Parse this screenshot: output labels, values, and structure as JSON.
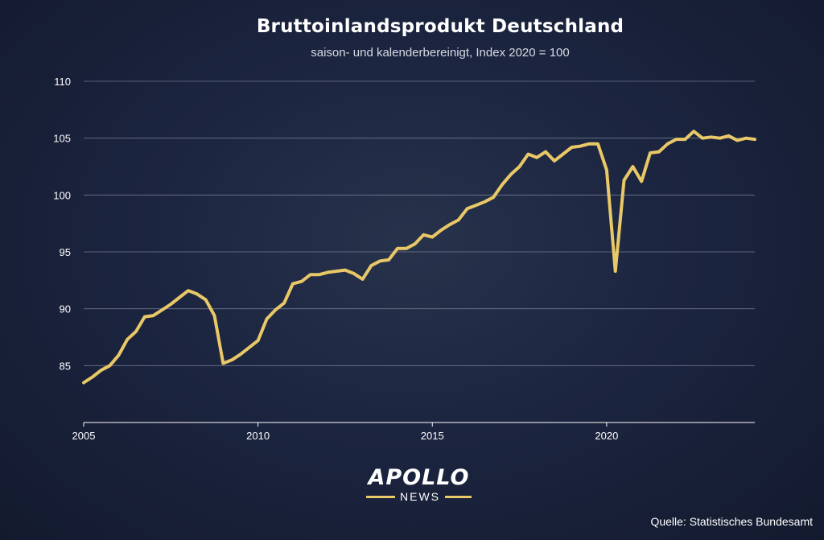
{
  "chart_data": {
    "type": "line",
    "title": "Bruttoinlandsprodukt Deutschland",
    "subtitle": "saison- und kalenderbereinigt, Index 2020 = 100",
    "ylim": [
      80,
      110
    ],
    "yticks": [
      85,
      90,
      95,
      100,
      105,
      110
    ],
    "xlim": [
      2005,
      2024.25
    ],
    "xticks": [
      2005,
      2010,
      2015,
      2020
    ],
    "grid": true,
    "color": "#e8c867",
    "series": [
      {
        "x": [
          2005.0,
          2005.25,
          2005.5,
          2005.75,
          2006.0,
          2006.25,
          2006.5,
          2006.75,
          2007.0,
          2007.25,
          2007.5,
          2007.75,
          2008.0,
          2008.25,
          2008.5,
          2008.75,
          2009.0,
          2009.25,
          2009.5,
          2009.75,
          2010.0,
          2010.25,
          2010.5,
          2010.75,
          2011.0,
          2011.25,
          2011.5,
          2011.75,
          2012.0,
          2012.25,
          2012.5,
          2012.75,
          2013.0,
          2013.25,
          2013.5,
          2013.75,
          2014.0,
          2014.25,
          2014.5,
          2014.75,
          2015.0,
          2015.25,
          2015.5,
          2015.75,
          2016.0,
          2016.25,
          2016.5,
          2016.75,
          2017.0,
          2017.25,
          2017.5,
          2017.75,
          2018.0,
          2018.25,
          2018.5,
          2018.75,
          2019.0,
          2019.25,
          2019.5,
          2019.75,
          2020.0,
          2020.25,
          2020.5,
          2020.75,
          2021.0,
          2021.25,
          2021.5,
          2021.75,
          2022.0,
          2022.25,
          2022.5,
          2022.75,
          2023.0,
          2023.25,
          2023.5,
          2023.75,
          2024.0,
          2024.25
        ],
        "values": [
          83.5,
          84.0,
          84.6,
          85.0,
          85.9,
          87.3,
          88.0,
          89.3,
          89.4,
          89.9,
          90.4,
          91.0,
          91.6,
          91.3,
          90.8,
          89.4,
          85.2,
          85.5,
          86.0,
          86.6,
          87.2,
          89.1,
          89.9,
          90.5,
          92.2,
          92.4,
          93.0,
          93.0,
          93.2,
          93.3,
          93.4,
          93.1,
          92.6,
          93.8,
          94.2,
          94.3,
          95.3,
          95.3,
          95.7,
          96.5,
          96.3,
          96.9,
          97.4,
          97.8,
          98.8,
          99.1,
          99.4,
          99.8,
          100.9,
          101.8,
          102.5,
          103.6,
          103.3,
          103.8,
          103.0,
          103.6,
          104.2,
          104.3,
          104.5,
          104.5,
          102.2,
          93.3,
          101.3,
          102.5,
          101.2,
          103.7,
          103.8,
          104.5,
          104.9,
          104.9,
          105.6,
          105.0,
          105.1,
          105.0,
          105.2,
          104.8,
          105.0,
          104.9
        ]
      }
    ]
  },
  "logo": {
    "word": "APOLLO",
    "sub": "NEWS"
  },
  "source": "Quelle: Statistisches Bundesamt"
}
